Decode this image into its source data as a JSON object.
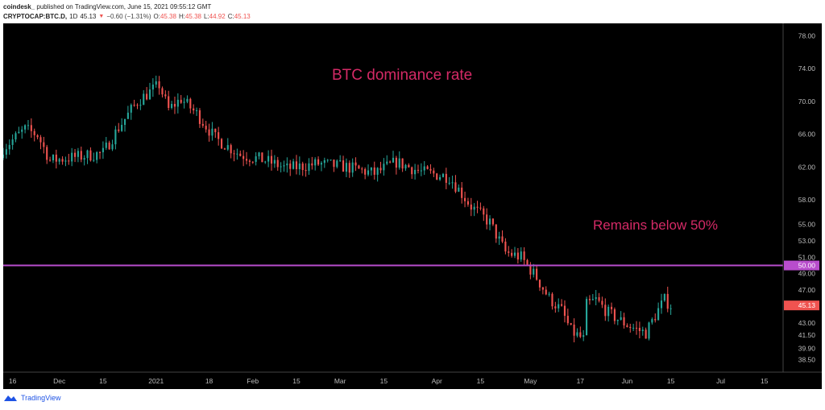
{
  "header": {
    "author": "coindesk_",
    "published": "published on TradingView.com, June 15, 2021 09:55:12 GMT",
    "symbol": "CRYPTOCAP:BTC.D,",
    "interval": "1D",
    "last": "45.13",
    "change": "−0.60 (−1.31%)",
    "open_label": "O:",
    "open": "45.38",
    "high_label": "H:",
    "high": "45.38",
    "low_label": "L:",
    "low": "44.92",
    "close_label": "C:",
    "close": "45.13"
  },
  "annotations": {
    "title": "BTC dominance rate",
    "line_note": "Remains below 50%"
  },
  "footer": {
    "brand": "TradingView"
  },
  "colors": {
    "up": "#26a69a",
    "down": "#ef5350",
    "line": "#b84dcc",
    "annotation": "#d42a66",
    "background": "#000000",
    "axis_text": "#bbbbbb"
  },
  "chart_data": {
    "type": "candlestick",
    "ylim": [
      37.0,
      79.5
    ],
    "y_ticks": [
      "78.00",
      "74.00",
      "70.00",
      "66.00",
      "62.00",
      "58.00",
      "55.00",
      "53.00",
      "51.00",
      "49.00",
      "47.00",
      "45.00",
      "43.00",
      "41.50",
      "39.90",
      "38.50"
    ],
    "x_ticks": [
      "16",
      "Dec",
      "15",
      "2021",
      "18",
      "Feb",
      "15",
      "Mar",
      "15",
      "Apr",
      "15",
      "May",
      "17",
      "Jun",
      "15",
      "Jul",
      "15"
    ],
    "x_range": [
      "2020-11-13",
      "2021-07-21"
    ],
    "horizontal_line": {
      "value": 50.0,
      "label": "50.00"
    },
    "last_price": {
      "value": 45.13,
      "label": "45.13"
    },
    "x_tick_dates": [
      "2020-11-16",
      "2020-12-01",
      "2020-12-15",
      "2021-01-01",
      "2021-01-18",
      "2021-02-01",
      "2021-02-15",
      "2021-03-01",
      "2021-03-15",
      "2021-04-01",
      "2021-04-15",
      "2021-05-01",
      "2021-05-17",
      "2021-06-01",
      "2021-06-15",
      "2021-07-01",
      "2021-07-15"
    ],
    "close_anchors": [
      [
        "2020-11-13",
        64.3
      ],
      [
        "2020-11-20",
        66.6
      ],
      [
        "2020-11-24",
        65.9
      ],
      [
        "2020-11-28",
        62.8
      ],
      [
        "2020-12-08",
        63.3
      ],
      [
        "2020-12-15",
        63.7
      ],
      [
        "2020-12-20",
        66.8
      ],
      [
        "2020-12-26",
        70.0
      ],
      [
        "2021-01-02",
        72.0
      ],
      [
        "2021-01-05",
        69.0
      ],
      [
        "2021-01-09",
        70.3
      ],
      [
        "2021-01-14",
        68.5
      ],
      [
        "2021-01-20",
        65.5
      ],
      [
        "2021-01-28",
        63.5
      ],
      [
        "2021-02-05",
        62.8
      ],
      [
        "2021-02-12",
        61.8
      ],
      [
        "2021-02-22",
        62.4
      ],
      [
        "2021-03-03",
        62.0
      ],
      [
        "2021-03-12",
        61.2
      ],
      [
        "2021-03-19",
        62.6
      ],
      [
        "2021-03-27",
        61.4
      ],
      [
        "2021-04-05",
        60.8
      ],
      [
        "2021-04-12",
        57.2
      ],
      [
        "2021-04-18",
        55.2
      ],
      [
        "2021-04-23",
        51.6
      ],
      [
        "2021-04-28",
        51.0
      ],
      [
        "2021-05-03",
        48.5
      ],
      [
        "2021-05-07",
        46.0
      ],
      [
        "2021-05-11",
        44.5
      ],
      [
        "2021-05-14",
        42.0
      ],
      [
        "2021-05-18",
        41.0
      ],
      [
        "2021-05-19",
        45.2
      ],
      [
        "2021-05-22",
        45.8
      ],
      [
        "2021-05-26",
        44.2
      ],
      [
        "2021-05-31",
        43.0
      ],
      [
        "2021-06-04",
        42.2
      ],
      [
        "2021-06-07",
        41.8
      ],
      [
        "2021-06-11",
        44.6
      ],
      [
        "2021-06-13",
        45.8
      ],
      [
        "2021-06-15",
        45.13
      ]
    ]
  }
}
